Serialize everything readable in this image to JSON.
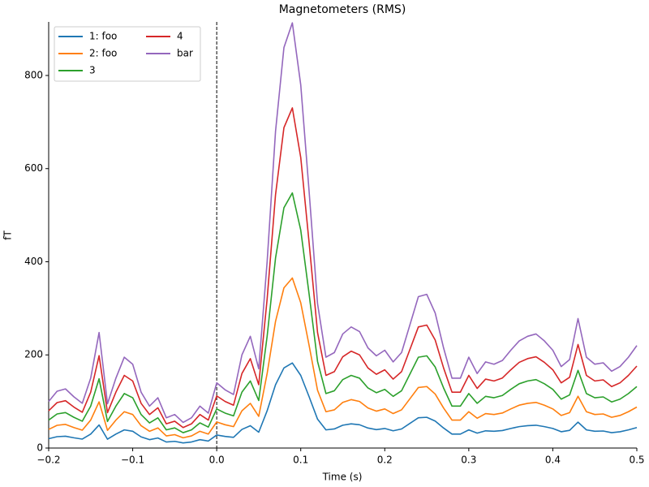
{
  "chart_data": {
    "type": "line",
    "title": "Magnetometers (RMS)",
    "x_label": "Time (s)",
    "y_label": "fT",
    "x": [
      -0.2,
      -0.19,
      -0.18,
      -0.17,
      -0.16,
      -0.15,
      -0.14,
      -0.13,
      -0.12,
      -0.11,
      -0.1,
      -0.09,
      -0.08,
      -0.07,
      -0.06,
      -0.05,
      -0.04,
      -0.03,
      -0.02,
      -0.01,
      0,
      0.01,
      0.02,
      0.03,
      0.04,
      0.05,
      0.06,
      0.07,
      0.08,
      0.09,
      0.1,
      0.11,
      0.12,
      0.13,
      0.14,
      0.15,
      0.16,
      0.17,
      0.18,
      0.19,
      0.2,
      0.21,
      0.22,
      0.23,
      0.24,
      0.25,
      0.26,
      0.27,
      0.28,
      0.29,
      0.3,
      0.31,
      0.32,
      0.33,
      0.34,
      0.35,
      0.36,
      0.37,
      0.38,
      0.39,
      0.4,
      0.41,
      0.42,
      0.43,
      0.44,
      0.45,
      0.46,
      0.47,
      0.48,
      0.49,
      0.5
    ],
    "series": [
      {
        "name": "1: foo",
        "color": "#1f77b4",
        "values": [
          20,
          24.4,
          25.4,
          22,
          19.2,
          30,
          49.6,
          19,
          30,
          39,
          36,
          24,
          18,
          21.6,
          13,
          14.4,
          11,
          13,
          18,
          15,
          28,
          25,
          23,
          40,
          48,
          34,
          80,
          136,
          172,
          182.6,
          156,
          110,
          62,
          39,
          41,
          49,
          52,
          50,
          43,
          39.6,
          42,
          37,
          41,
          53,
          65,
          66,
          58,
          43,
          30,
          30,
          39,
          32,
          37,
          36,
          37.6,
          42,
          46,
          48,
          49,
          46,
          42,
          35,
          38,
          55.6,
          39,
          36,
          36.6,
          33,
          35,
          39,
          44
        ]
      },
      {
        "name": "2: foo",
        "color": "#ff7f0e",
        "values": [
          40,
          48.8,
          50.8,
          44,
          38.4,
          60,
          99.2,
          38,
          60,
          78,
          72,
          48,
          36,
          43.2,
          26,
          28.8,
          22,
          26,
          36,
          30,
          56,
          50,
          46,
          80,
          96,
          68,
          160,
          272,
          344,
          365.2,
          312,
          220,
          124,
          78,
          82,
          98,
          104,
          100,
          86,
          79.2,
          84,
          74,
          82,
          106,
          130,
          132,
          116,
          86,
          60,
          60,
          78,
          64,
          74,
          72,
          75.2,
          84,
          92,
          96,
          98,
          92,
          84,
          70,
          76,
          111.2,
          78,
          72,
          73.2,
          66,
          70,
          78,
          88
        ]
      },
      {
        "name": "3",
        "color": "#2ca02c",
        "values": [
          60,
          73.2,
          76.2,
          66,
          57.6,
          90,
          148.8,
          57,
          90,
          117,
          108,
          72,
          54,
          64.8,
          39,
          43.2,
          33,
          39,
          54,
          45,
          84,
          75,
          69,
          120,
          144,
          102,
          240,
          408,
          516,
          547.8,
          468,
          330,
          186,
          117,
          123,
          147,
          156,
          150,
          129,
          118.8,
          126,
          111,
          123,
          159,
          195,
          198,
          174,
          129,
          90,
          90,
          117,
          96,
          111,
          108,
          112.8,
          126,
          138,
          144,
          147,
          138,
          126,
          105,
          114,
          166.8,
          117,
          108,
          109.8,
          99,
          105,
          117,
          132
        ]
      },
      {
        "name": "4",
        "color": "#d62728",
        "values": [
          80,
          97.6,
          101.6,
          88,
          76.8,
          120,
          198.4,
          76,
          120,
          156,
          144,
          96,
          72,
          86.4,
          52,
          57.6,
          44,
          52,
          72,
          60,
          112,
          100,
          92,
          160,
          192,
          136,
          320,
          544,
          688,
          730.4,
          624,
          440,
          248,
          156,
          164,
          196,
          208,
          200,
          172,
          158.4,
          168,
          148,
          164,
          212,
          260,
          264,
          232,
          172,
          120,
          120,
          156,
          128,
          148,
          144,
          150.4,
          168,
          184,
          192,
          196,
          184,
          168,
          140,
          152,
          222.4,
          156,
          144,
          146.4,
          132,
          140,
          156,
          176
        ]
      },
      {
        "name": "bar",
        "color": "#9467bd",
        "values": [
          100,
          122,
          127,
          110,
          96,
          150,
          248,
          95,
          150,
          195,
          180,
          120,
          90,
          108,
          65,
          72,
          55,
          65,
          90,
          75,
          140,
          125,
          115,
          200,
          240,
          170,
          400,
          680,
          860,
          913,
          780,
          550,
          310,
          195,
          205,
          245,
          260,
          250,
          215,
          198,
          210,
          185,
          205,
          265,
          325,
          330,
          290,
          215,
          150,
          150,
          195,
          160,
          185,
          180,
          188,
          210,
          230,
          240,
          245,
          230,
          210,
          175,
          190,
          278,
          195,
          180,
          183,
          165,
          175,
          195,
          220
        ]
      }
    ],
    "xlim": [
      -0.2,
      0.5
    ],
    "ylim": [
      0,
      915
    ],
    "xticks": [
      {
        "value": -0.2,
        "label": "−0.2"
      },
      {
        "value": -0.1,
        "label": "−0.1"
      },
      {
        "value": 0,
        "label": "0.0"
      },
      0.1,
      0.2,
      0.3,
      0.4,
      0.5
    ],
    "yticks": [
      0,
      200,
      400,
      600,
      800
    ],
    "vline": 0,
    "legend": "upper-left",
    "legend_columns": 2
  }
}
